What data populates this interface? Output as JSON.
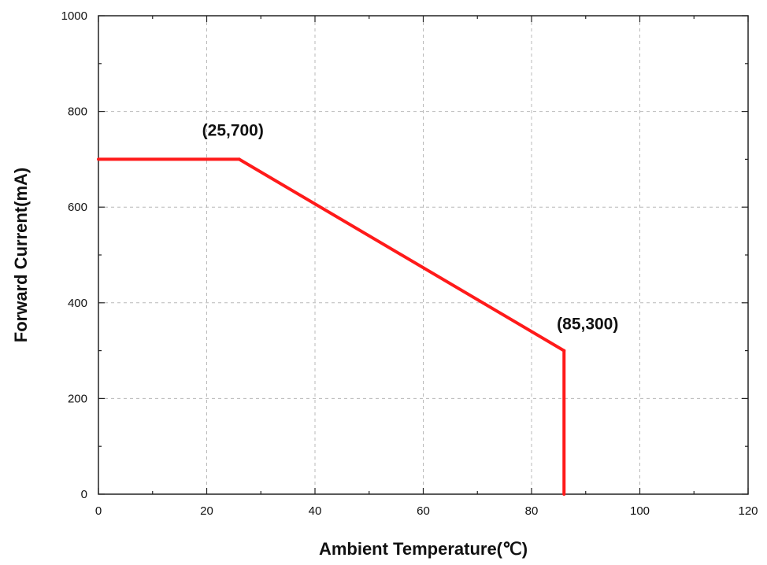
{
  "chart_data": {
    "type": "line",
    "xlabel": "Ambient Temperature(℃)",
    "ylabel": "Forward Current(mA)",
    "xlim": [
      0,
      120
    ],
    "ylim": [
      0,
      1000
    ],
    "xticks": [
      0,
      20,
      40,
      60,
      80,
      100,
      120
    ],
    "yticks": [
      0,
      200,
      400,
      600,
      800,
      1000
    ],
    "xtick_labels": [
      "0",
      "20",
      "40",
      "60",
      "80",
      "100",
      "120"
    ],
    "ytick_labels": [
      "0",
      "200",
      "400",
      "600",
      "800",
      "1000"
    ],
    "grid": true,
    "series_color": "#ff1a1a",
    "series": [
      {
        "x": [
          0,
          26,
          86,
          86
        ],
        "y": [
          700,
          700,
          300,
          0
        ]
      }
    ],
    "annotations": [
      {
        "text": "(25,700)",
        "x": 26,
        "y": 700
      },
      {
        "text": "(85,300)",
        "x": 86,
        "y": 300
      }
    ]
  }
}
